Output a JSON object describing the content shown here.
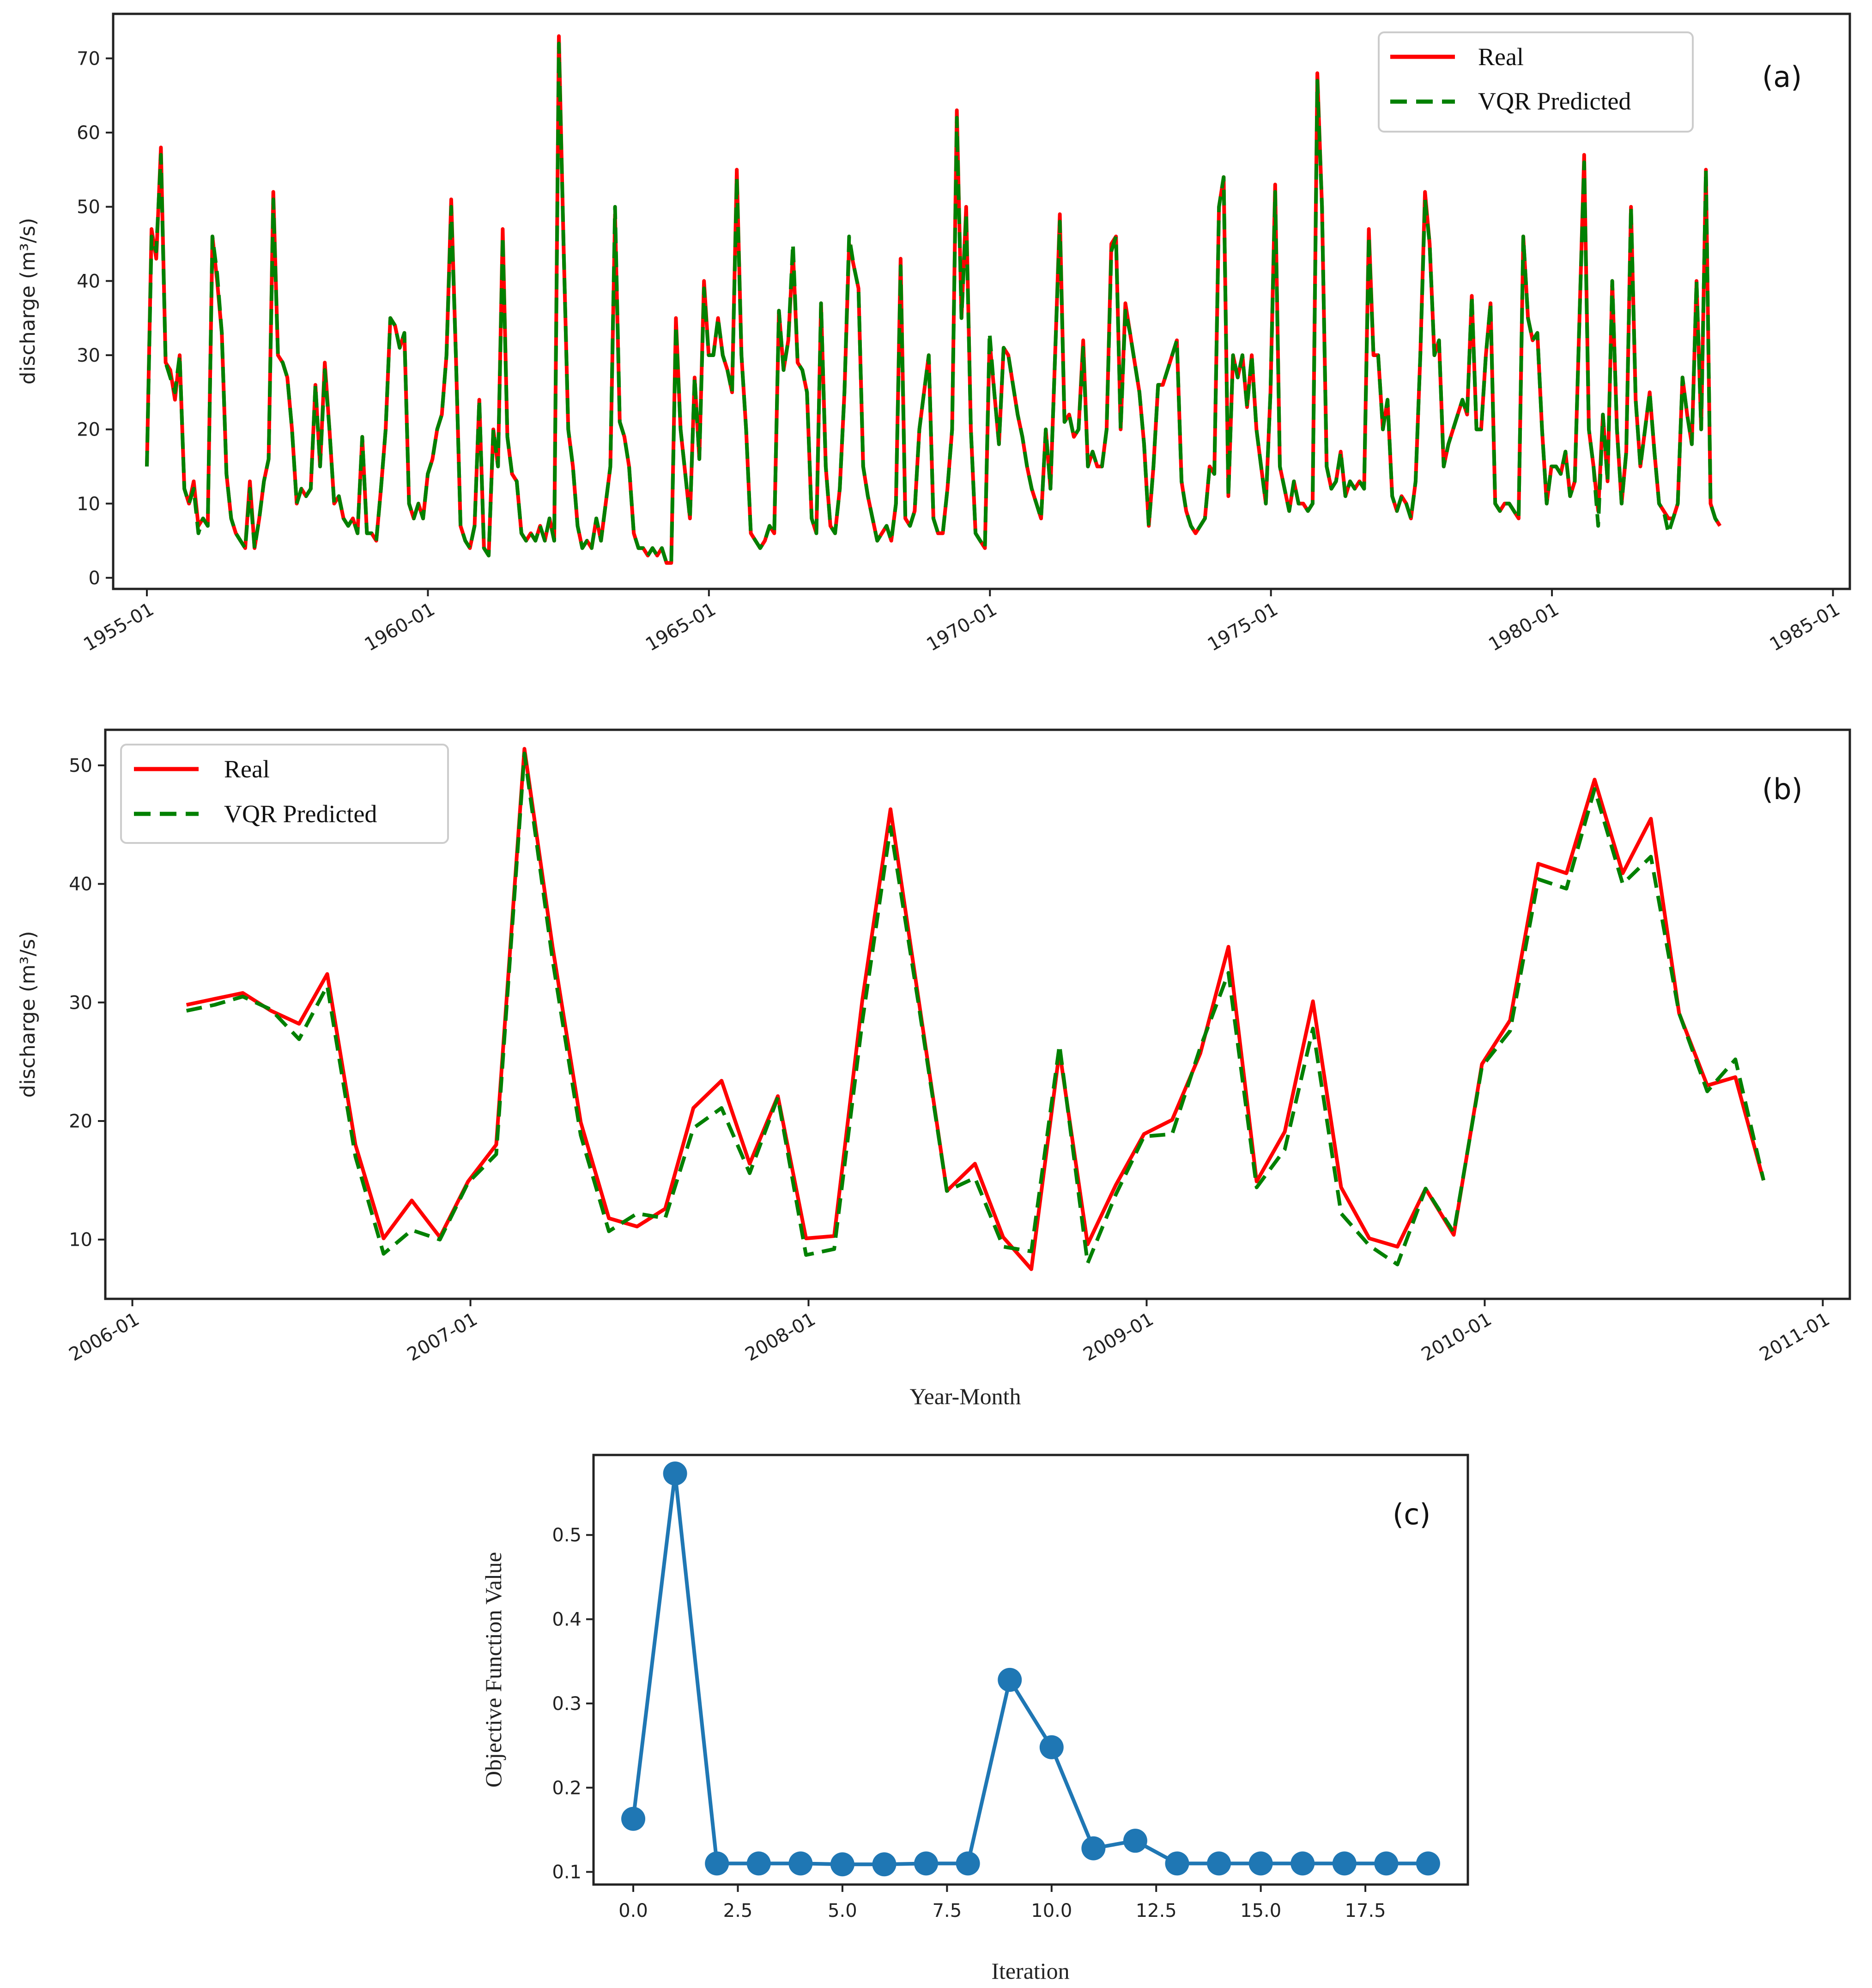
{
  "colors": {
    "real": "#ff0000",
    "predicted": "#008000",
    "series_c": "#1f77b4"
  },
  "chart_data": [
    {
      "type": "line",
      "panel": "(a)",
      "ylabel": "discharge (m³/s)",
      "xlabel": "",
      "ylim": [
        -1.5,
        76
      ],
      "yticks": [
        0,
        10,
        20,
        30,
        40,
        50,
        60,
        70
      ],
      "xlim_years": [
        1954.4,
        1985.3
      ],
      "xticks": [
        {
          "pos": 1955,
          "label": "1955-01"
        },
        {
          "pos": 1960,
          "label": "1960-01"
        },
        {
          "pos": 1965,
          "label": "1965-01"
        },
        {
          "pos": 1970,
          "label": "1970-01"
        },
        {
          "pos": 1975,
          "label": "1975-01"
        },
        {
          "pos": 1980,
          "label": "1980-01"
        },
        {
          "pos": 1985,
          "label": "1985-01"
        }
      ],
      "legend": {
        "location": "upper right",
        "entries": [
          "Real",
          "VQR Predicted"
        ]
      },
      "x_start": 1955.0,
      "x_step": 0.0833,
      "series": [
        {
          "name": "Real",
          "values": [
            15,
            47,
            43,
            58,
            29,
            28,
            24,
            30,
            12,
            10,
            13,
            7,
            8,
            7,
            46,
            40,
            33,
            14,
            8,
            6,
            5,
            4,
            13,
            4,
            8,
            13,
            16,
            52,
            30,
            29,
            27,
            20,
            10,
            12,
            11,
            12,
            26,
            15,
            29,
            20,
            10,
            11,
            8,
            7,
            8,
            6,
            19,
            6,
            6,
            5,
            12,
            20,
            35,
            34,
            31,
            33,
            10,
            8,
            10,
            8,
            14,
            16,
            20,
            22,
            30,
            51,
            30,
            7,
            5,
            4,
            7,
            24,
            4,
            3,
            20,
            15,
            47,
            19,
            14,
            13,
            6,
            5,
            6,
            5,
            7,
            5,
            8,
            5,
            73,
            45,
            20,
            15,
            7,
            4,
            5,
            4,
            8,
            5,
            10,
            15,
            49,
            21,
            19,
            15,
            6,
            4,
            4,
            3,
            4,
            3,
            4,
            2,
            2,
            35,
            20,
            14,
            8,
            27,
            16,
            40,
            30,
            30,
            35,
            30,
            28,
            25,
            55,
            30,
            20,
            6,
            5,
            4,
            5,
            7,
            6,
            36,
            28,
            32,
            44,
            29,
            28,
            25,
            8,
            6,
            37,
            15,
            7,
            6,
            12,
            25,
            45,
            42,
            39,
            15,
            11,
            8,
            5,
            6,
            7,
            5,
            10,
            43,
            8,
            7,
            9,
            20,
            25,
            30,
            8,
            6,
            6,
            12,
            20,
            63,
            35,
            50,
            20,
            6,
            5,
            4,
            32,
            25,
            18,
            31,
            30,
            26,
            22,
            19,
            15,
            12,
            10,
            8,
            20,
            12,
            30,
            49,
            21,
            22,
            19,
            20,
            32,
            15,
            17,
            15,
            15,
            20,
            45,
            46,
            20,
            37,
            33,
            29,
            25,
            18,
            7,
            15,
            26,
            26,
            28,
            30,
            32,
            13,
            9,
            7,
            6,
            7,
            8,
            15,
            14,
            50,
            54,
            11,
            30,
            27,
            30,
            23,
            30,
            20,
            15,
            10,
            25,
            53,
            15,
            12,
            9,
            13,
            10,
            10,
            9,
            10,
            68,
            50,
            15,
            12,
            13,
            17,
            11,
            13,
            12,
            13,
            12,
            47,
            30,
            30,
            20,
            24,
            11,
            9,
            11,
            10,
            8,
            13,
            30,
            52,
            45,
            30,
            32,
            15,
            18,
            20,
            22,
            24,
            22,
            38,
            20,
            20,
            30,
            37,
            10,
            9,
            10,
            10,
            9,
            8,
            46,
            35,
            32,
            33,
            20,
            10,
            15,
            15,
            14,
            17,
            11,
            13,
            35,
            57,
            20,
            15,
            9,
            22,
            13,
            40,
            20,
            10,
            17,
            50,
            24,
            15,
            20,
            25,
            17,
            10,
            9,
            8,
            8,
            10,
            27,
            22,
            18,
            40,
            20,
            55,
            10,
            8,
            7
          ]
        },
        {
          "name": "VQR Predicted",
          "values": [
            15,
            46,
            44,
            57,
            29,
            27,
            25,
            30,
            12,
            10,
            12,
            6,
            8,
            7,
            46,
            41,
            33,
            14,
            8,
            6,
            5,
            4,
            12,
            4,
            8,
            13,
            16,
            51,
            30,
            29,
            27,
            20,
            10,
            12,
            11,
            12,
            26,
            15,
            28,
            20,
            10,
            11,
            8,
            7,
            8,
            6,
            19,
            6,
            6,
            5,
            12,
            20,
            35,
            34,
            31,
            33,
            10,
            8,
            10,
            8,
            14,
            16,
            20,
            22,
            30,
            50,
            30,
            7,
            5,
            4,
            7,
            24,
            4,
            3,
            20,
            15,
            46,
            19,
            14,
            13,
            6,
            5,
            6,
            5,
            7,
            5,
            8,
            5,
            72,
            45,
            20,
            15,
            7,
            4,
            5,
            4,
            8,
            5,
            10,
            15,
            50,
            21,
            19,
            15,
            6,
            4,
            4,
            3,
            4,
            3,
            4,
            2,
            2,
            34,
            20,
            14,
            8,
            27,
            16,
            39,
            30,
            30,
            35,
            30,
            28,
            25,
            54,
            30,
            20,
            6,
            5,
            4,
            5,
            7,
            6,
            36,
            28,
            32,
            45,
            29,
            28,
            25,
            8,
            6,
            37,
            15,
            7,
            6,
            12,
            25,
            46,
            42,
            39,
            15,
            11,
            8,
            5,
            6,
            7,
            5,
            10,
            42,
            8,
            7,
            9,
            20,
            25,
            30,
            8,
            6,
            6,
            12,
            20,
            62,
            35,
            49,
            20,
            6,
            5,
            4,
            33,
            25,
            18,
            31,
            30,
            26,
            22,
            19,
            15,
            12,
            10,
            8,
            20,
            12,
            30,
            48,
            21,
            22,
            19,
            20,
            31,
            15,
            17,
            15,
            15,
            20,
            44,
            46,
            20,
            36,
            33,
            29,
            25,
            18,
            7,
            15,
            26,
            26,
            28,
            30,
            32,
            13,
            9,
            7,
            6,
            7,
            8,
            15,
            14,
            50,
            54,
            11,
            30,
            27,
            30,
            23,
            30,
            20,
            15,
            10,
            25,
            52,
            15,
            12,
            9,
            13,
            10,
            10,
            9,
            10,
            67,
            50,
            15,
            12,
            13,
            17,
            11,
            13,
            12,
            13,
            12,
            46,
            30,
            30,
            20,
            24,
            11,
            9,
            11,
            10,
            8,
            13,
            30,
            51,
            45,
            30,
            32,
            15,
            18,
            20,
            22,
            24,
            22,
            38,
            20,
            20,
            30,
            37,
            10,
            9,
            10,
            10,
            9,
            8,
            46,
            35,
            32,
            33,
            20,
            10,
            15,
            15,
            14,
            17,
            11,
            13,
            35,
            56,
            20,
            15,
            7,
            22,
            13,
            40,
            20,
            10,
            17,
            50,
            24,
            15,
            20,
            25,
            17,
            10,
            9,
            6,
            8,
            10,
            27,
            22,
            18,
            40,
            20,
            55,
            10,
            8,
            7
          ]
        }
      ]
    },
    {
      "type": "line",
      "panel": "(b)",
      "ylabel": "discharge (m³/s)",
      "xlabel": "Year-Month",
      "ylim": [
        5,
        53
      ],
      "yticks": [
        10,
        20,
        30,
        40,
        50
      ],
      "xlim_years": [
        2005.92,
        2011.08
      ],
      "xticks": [
        {
          "pos": 2006,
          "label": "2006-01"
        },
        {
          "pos": 2007,
          "label": "2007-01"
        },
        {
          "pos": 2008,
          "label": "2008-01"
        },
        {
          "pos": 2009,
          "label": "2009-01"
        },
        {
          "pos": 2010,
          "label": "2010-01"
        },
        {
          "pos": 2011,
          "label": "2011-01"
        }
      ],
      "legend": {
        "location": "upper left",
        "entries": [
          "Real",
          "VQR Predicted"
        ]
      },
      "x_start": 2006.16,
      "x_step": 0.0833,
      "series": [
        {
          "name": "Real",
          "values": [
            29.8,
            30.3,
            30.8,
            29.3,
            28.2,
            32.4,
            18.0,
            10.1,
            13.3,
            10.2,
            14.9,
            18.0,
            51.4,
            34.7,
            19.9,
            11.8,
            11.1,
            12.6,
            21.1,
            23.4,
            16.4,
            22.1,
            10.1,
            10.3,
            30.2,
            46.3,
            30.2,
            14.1,
            16.4,
            10.2,
            7.5,
            25.9,
            9.6,
            14.6,
            18.9,
            20.1,
            25.7,
            34.7,
            14.9,
            19.1,
            30.1,
            14.4,
            10.1,
            9.4,
            14.3,
            10.4,
            24.8,
            28.5,
            41.7,
            40.9,
            48.8,
            40.9,
            45.5,
            29.1,
            23.0,
            23.7,
            15.0
          ]
        },
        {
          "name": "VQR Predicted",
          "values": [
            29.3,
            29.8,
            30.5,
            29.4,
            26.9,
            31.4,
            17.0,
            8.8,
            10.8,
            10.0,
            14.8,
            17.2,
            51.0,
            33.6,
            18.8,
            10.7,
            12.2,
            11.8,
            19.4,
            21.1,
            15.6,
            22.0,
            8.7,
            9.2,
            28.4,
            44.8,
            29.8,
            14.1,
            15.2,
            9.4,
            9.0,
            26.4,
            8.0,
            13.8,
            18.7,
            18.9,
            26.2,
            32.5,
            14.4,
            17.6,
            27.8,
            12.2,
            9.5,
            7.9,
            14.3,
            10.6,
            24.6,
            27.6,
            40.4,
            39.6,
            48.0,
            40.0,
            42.3,
            29.1,
            22.5,
            25.2,
            15.0
          ]
        }
      ]
    },
    {
      "type": "line",
      "panel": "(c)",
      "xlabel": "Iteration",
      "ylabel": "Objective Function Value",
      "xlim": [
        -0.95,
        19.95
      ],
      "ylim": [
        0.085,
        0.595
      ],
      "xticks": [
        0.0,
        2.5,
        5.0,
        7.5,
        10.0,
        12.5,
        15.0,
        17.5
      ],
      "xtick_labels": [
        "0.0",
        "2.5",
        "5.0",
        "7.5",
        "10.0",
        "12.5",
        "15.0",
        "17.5"
      ],
      "yticks": [
        0.1,
        0.2,
        0.3,
        0.4,
        0.5
      ],
      "ytick_labels": [
        "0.1",
        "0.2",
        "0.3",
        "0.4",
        "0.5"
      ],
      "markers": true,
      "x": [
        0,
        1,
        2,
        3,
        4,
        5,
        6,
        7,
        8,
        9,
        10,
        11,
        12,
        13,
        14,
        15,
        16,
        17,
        18,
        19
      ],
      "series": [
        {
          "name": "Objective",
          "values": [
            0.163,
            0.573,
            0.11,
            0.11,
            0.11,
            0.109,
            0.109,
            0.11,
            0.11,
            0.328,
            0.248,
            0.128,
            0.137,
            0.11,
            0.11,
            0.11,
            0.11,
            0.11,
            0.11,
            0.11
          ]
        }
      ]
    }
  ]
}
